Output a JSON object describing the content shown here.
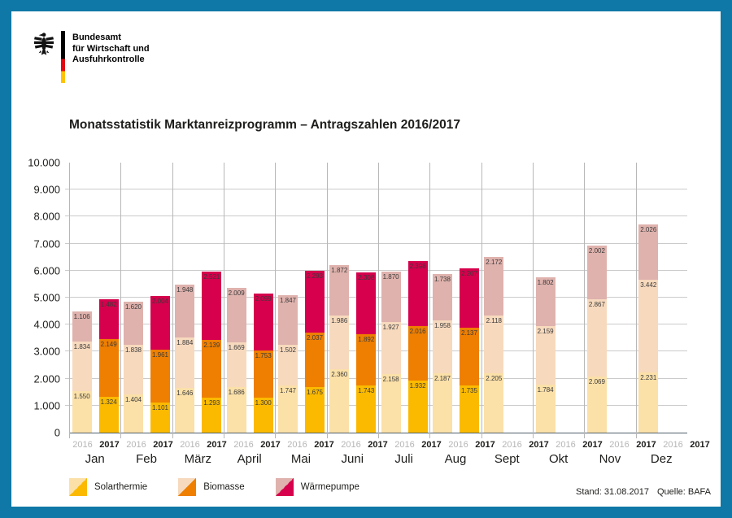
{
  "brand": {
    "agency_lines": [
      "Bundesamt",
      "für Wirtschaft und",
      "Ausfuhrkontrolle"
    ],
    "flag_colors": [
      "#000000",
      "#e30613",
      "#fdc300"
    ],
    "border_color": "#0f78a6"
  },
  "chart_data": {
    "type": "bar",
    "stacked": true,
    "title": "Monatsstatistik Marktanreizprogramm – Antragszahlen 2016/2017",
    "categories": [
      "Jan",
      "Feb",
      "März",
      "April",
      "Mai",
      "Juni",
      "Juli",
      "Aug",
      "Sept",
      "Okt",
      "Nov",
      "Dez"
    ],
    "group_years": [
      "2016",
      "2017"
    ],
    "ylim": [
      0,
      10000
    ],
    "ytick_step": 1000,
    "ytick_labels": [
      "0",
      "1.000",
      "2.000",
      "3.000",
      "4.000",
      "5.000",
      "6.000",
      "7.000",
      "8.000",
      "9.000",
      "10.000"
    ],
    "grid": true,
    "legend_position": "bottom-left",
    "series": [
      {
        "name": "Solarthermie",
        "year": "2016",
        "color": "#fbe0a8",
        "values": [
          1550,
          1404,
          1646,
          1686,
          1747,
          2360,
          2158,
          2187,
          2205,
          1784,
          2069,
          2231
        ]
      },
      {
        "name": "Biomasse",
        "year": "2016",
        "color": "#f7d9bd",
        "values": [
          1834,
          1838,
          1884,
          1669,
          1502,
          1986,
          1927,
          1958,
          2118,
          2159,
          2867,
          3442
        ]
      },
      {
        "name": "Wärmepumpe",
        "year": "2016",
        "color": "#dfb2ad",
        "values": [
          1106,
          1620,
          1948,
          2009,
          1847,
          1872,
          1870,
          1738,
          2172,
          1802,
          2002,
          2026
        ]
      },
      {
        "name": "Solarthermie",
        "year": "2017",
        "color": "#fbba00",
        "values": [
          1324,
          1101,
          1293,
          1300,
          1675,
          1743,
          1932,
          1735,
          null,
          null,
          null,
          null
        ]
      },
      {
        "name": "Biomasse",
        "year": "2017",
        "color": "#ee7f00",
        "values": [
          2149,
          1961,
          2139,
          1753,
          2037,
          1892,
          2016,
          2137,
          null,
          null,
          null,
          null
        ]
      },
      {
        "name": "Wärmepumpe",
        "year": "2017",
        "color": "#d6004c",
        "values": [
          1482,
          2004,
          2521,
          2099,
          2293,
          2308,
          2398,
          2207,
          null,
          null,
          null,
          null
        ]
      }
    ],
    "legend": [
      {
        "label": "Solarthermie",
        "color_2016": "#fbe0a8",
        "color_2017": "#fbba00"
      },
      {
        "label": "Biomasse",
        "color_2016": "#f7d9bd",
        "color_2017": "#ee7f00"
      },
      {
        "label": "Wärmepumpe",
        "color_2016": "#dfb2ad",
        "color_2017": "#d6004c"
      }
    ],
    "year_label_colors": {
      "2016": "#b5b5b5",
      "2017": "#1d1d1b"
    }
  },
  "footer": {
    "stand": "Stand: 31.08.2017",
    "quelle": "Quelle: BAFA"
  }
}
